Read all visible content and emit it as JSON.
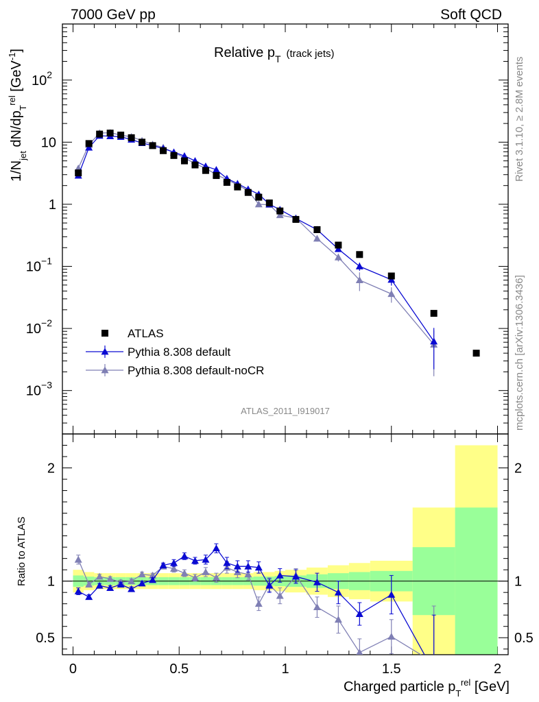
{
  "header": {
    "left": "7000 GeV pp",
    "right": "Soft QCD"
  },
  "side_labels": {
    "top": "Rivet 3.1.10, ≥ 2.8M events",
    "bottom": "mcplots.cern.ch [arXiv:1306.3436]"
  },
  "analysis_label": "ATLAS_2011_I919017",
  "colors": {
    "atlas": "#000000",
    "default": "#0a0ad2",
    "nocr": "#7f7fb4",
    "band_inner": "#99ff99",
    "band_outer": "#ffff88"
  },
  "chart_data": [
    {
      "type": "line",
      "title": "Relative p_T (track jets)",
      "title_main": "Relative p",
      "title_sub": "T",
      "title_extra": "(track jets)",
      "ylabel": "1/N_jet dN/dp_T^rel [GeV^-1]",
      "ylabel_parts": {
        "a": "1/N",
        "b": "jet",
        "c": " dN/dp",
        "d": "T",
        "e": "rel",
        "f": " [GeV",
        "g": "-1",
        "h": "]"
      },
      "yscale": "log",
      "ylim": [
        0.0002,
        800
      ],
      "xlim": [
        -0.05,
        2.05
      ],
      "yticks": [
        {
          "value": 0.001,
          "base": "10",
          "exp": "−3"
        },
        {
          "value": 0.01,
          "base": "10",
          "exp": "−2"
        },
        {
          "value": 0.1,
          "base": "10",
          "exp": "−1"
        },
        {
          "value": 1,
          "base": "1",
          "exp": ""
        },
        {
          "value": 10,
          "base": "10",
          "exp": ""
        },
        {
          "value": 100,
          "base": "10",
          "exp": "2"
        }
      ],
      "legend_position": "lower-left",
      "series": [
        {
          "name": "ATLAS",
          "marker": "square",
          "x": [
            0.025,
            0.075,
            0.125,
            0.175,
            0.225,
            0.275,
            0.325,
            0.375,
            0.425,
            0.475,
            0.525,
            0.575,
            0.625,
            0.675,
            0.725,
            0.775,
            0.825,
            0.875,
            0.925,
            0.975,
            1.05,
            1.15,
            1.25,
            1.35,
            1.5,
            1.7,
            1.9
          ],
          "y": [
            3.2,
            9.5,
            13.5,
            14.0,
            13.0,
            11.8,
            10.0,
            8.8,
            7.3,
            6.1,
            5.0,
            4.3,
            3.5,
            2.9,
            2.25,
            1.9,
            1.55,
            1.3,
            1.05,
            0.78,
            0.57,
            0.39,
            0.22,
            0.155,
            0.07,
            0.0175,
            0.004
          ]
        },
        {
          "name": "Pythia 8.308 default",
          "marker": "triangle",
          "x": [
            0.025,
            0.075,
            0.125,
            0.175,
            0.225,
            0.275,
            0.325,
            0.375,
            0.425,
            0.475,
            0.525,
            0.575,
            0.625,
            0.675,
            0.725,
            0.775,
            0.825,
            0.875,
            0.925,
            0.975,
            1.05,
            1.15,
            1.25,
            1.35,
            1.5,
            1.7
          ],
          "y": [
            2.9,
            8.2,
            12.7,
            12.5,
            12.2,
            11.0,
            9.7,
            8.8,
            7.9,
            6.9,
            6.0,
            5.0,
            4.1,
            3.6,
            2.6,
            2.15,
            1.75,
            1.45,
            1.0,
            0.82,
            0.59,
            0.39,
            0.19,
            0.1,
            0.061,
            0.0062
          ],
          "err": [
            0.1,
            0.2,
            0.2,
            0.2,
            0.2,
            0.2,
            0.2,
            0.2,
            0.15,
            0.15,
            0.15,
            0.12,
            0.12,
            0.12,
            0.1,
            0.08,
            0.07,
            0.06,
            0.05,
            0.04,
            0.03,
            0.03,
            0.02,
            0.015,
            0.012,
            0.004
          ]
        },
        {
          "name": "Pythia 8.308 default-noCR",
          "marker": "triangle",
          "x": [
            0.025,
            0.075,
            0.125,
            0.175,
            0.225,
            0.275,
            0.325,
            0.375,
            0.425,
            0.475,
            0.525,
            0.575,
            0.625,
            0.675,
            0.725,
            0.775,
            0.825,
            0.875,
            0.925,
            0.975,
            1.05,
            1.15,
            1.25,
            1.35,
            1.5,
            1.7
          ],
          "y": [
            3.8,
            9.1,
            14.0,
            14.2,
            13.0,
            12.2,
            10.6,
            9.2,
            8.2,
            6.8,
            5.6,
            4.5,
            3.8,
            3.0,
            2.5,
            2.05,
            1.65,
            1.0,
            0.98,
            0.67,
            0.6,
            0.28,
            0.14,
            0.06,
            0.036,
            0.0055
          ],
          "err": [
            0.1,
            0.2,
            0.2,
            0.2,
            0.2,
            0.2,
            0.2,
            0.2,
            0.15,
            0.15,
            0.15,
            0.12,
            0.12,
            0.12,
            0.1,
            0.08,
            0.07,
            0.06,
            0.05,
            0.04,
            0.03,
            0.03,
            0.02,
            0.02,
            0.01,
            0.0038
          ]
        }
      ]
    },
    {
      "type": "line",
      "ylabel": "Ratio to ATLAS",
      "xlabel": "Charged particle p_T^rel [GeV]",
      "xlabel_parts": {
        "a": "Charged particle p",
        "b": "T",
        "c": "rel",
        "d": " [GeV]"
      },
      "ylim": [
        0.35,
        2.3
      ],
      "xlim": [
        -0.05,
        2.05
      ],
      "yticks": [
        0.5,
        1,
        2
      ],
      "xticks": [
        0,
        0.5,
        1,
        1.5,
        2
      ],
      "xtick_labels": [
        "0",
        "0.5",
        "1",
        "1.5",
        "2"
      ],
      "ytick_labels": [
        "0.5",
        "1",
        "2"
      ],
      "bands": {
        "edges": [
          0,
          0.05,
          0.1,
          0.15,
          0.2,
          0.25,
          0.3,
          0.35,
          0.4,
          0.45,
          0.5,
          0.55,
          0.6,
          0.65,
          0.7,
          0.75,
          0.8,
          0.85,
          0.9,
          0.95,
          1.0,
          1.1,
          1.2,
          1.3,
          1.4,
          1.6,
          1.8,
          2.0
        ],
        "inner": [
          0.05,
          0.04,
          0.035,
          0.035,
          0.035,
          0.035,
          0.035,
          0.035,
          0.035,
          0.035,
          0.035,
          0.035,
          0.035,
          0.035,
          0.035,
          0.035,
          0.035,
          0.04,
          0.04,
          0.045,
          0.05,
          0.06,
          0.07,
          0.08,
          0.09,
          0.3,
          0.65
        ],
        "outer": [
          0.1,
          0.08,
          0.07,
          0.07,
          0.07,
          0.07,
          0.07,
          0.07,
          0.07,
          0.07,
          0.07,
          0.07,
          0.07,
          0.07,
          0.07,
          0.07,
          0.07,
          0.08,
          0.08,
          0.09,
          0.1,
          0.12,
          0.14,
          0.16,
          0.18,
          0.65,
          1.2
        ]
      },
      "series": [
        {
          "name": "Pythia 8.308 default",
          "x": [
            0.025,
            0.075,
            0.125,
            0.175,
            0.225,
            0.275,
            0.325,
            0.375,
            0.425,
            0.475,
            0.525,
            0.575,
            0.625,
            0.675,
            0.725,
            0.775,
            0.825,
            0.875,
            0.925,
            0.975,
            1.05,
            1.15,
            1.25,
            1.35,
            1.5,
            1.7
          ],
          "y": [
            0.91,
            0.86,
            0.96,
            0.94,
            0.97,
            0.93,
            0.98,
            1.01,
            1.14,
            1.16,
            1.22,
            1.18,
            1.19,
            1.29,
            1.16,
            1.13,
            1.13,
            1.12,
            0.96,
            1.05,
            1.04,
            0.99,
            0.9,
            0.71,
            0.88,
            0.2
          ],
          "err": [
            0.03,
            0.02,
            0.02,
            0.02,
            0.02,
            0.02,
            0.02,
            0.02,
            0.02,
            0.03,
            0.03,
            0.03,
            0.04,
            0.04,
            0.05,
            0.05,
            0.05,
            0.05,
            0.06,
            0.06,
            0.06,
            0.08,
            0.1,
            0.1,
            0.17,
            0.5
          ]
        },
        {
          "name": "Pythia 8.308 default-noCR",
          "x": [
            0.025,
            0.075,
            0.125,
            0.175,
            0.225,
            0.275,
            0.325,
            0.375,
            0.425,
            0.475,
            0.525,
            0.575,
            0.625,
            0.675,
            0.725,
            0.775,
            0.825,
            0.875,
            0.925,
            0.975,
            1.05,
            1.15,
            1.25,
            1.35,
            1.5,
            1.7
          ],
          "y": [
            1.19,
            0.97,
            1.04,
            1.02,
            0.99,
            1.0,
            1.06,
            1.05,
            1.13,
            1.11,
            1.07,
            1.03,
            1.08,
            1.03,
            1.12,
            1.08,
            1.06,
            0.8,
            0.97,
            0.87,
            1.05,
            0.77,
            0.66,
            0.37,
            0.51,
            0.28
          ],
          "err": [
            0.04,
            0.02,
            0.02,
            0.02,
            0.02,
            0.02,
            0.02,
            0.02,
            0.02,
            0.03,
            0.03,
            0.03,
            0.04,
            0.04,
            0.05,
            0.05,
            0.05,
            0.06,
            0.06,
            0.07,
            0.06,
            0.09,
            0.12,
            0.12,
            0.15,
            0.5
          ]
        }
      ]
    }
  ]
}
